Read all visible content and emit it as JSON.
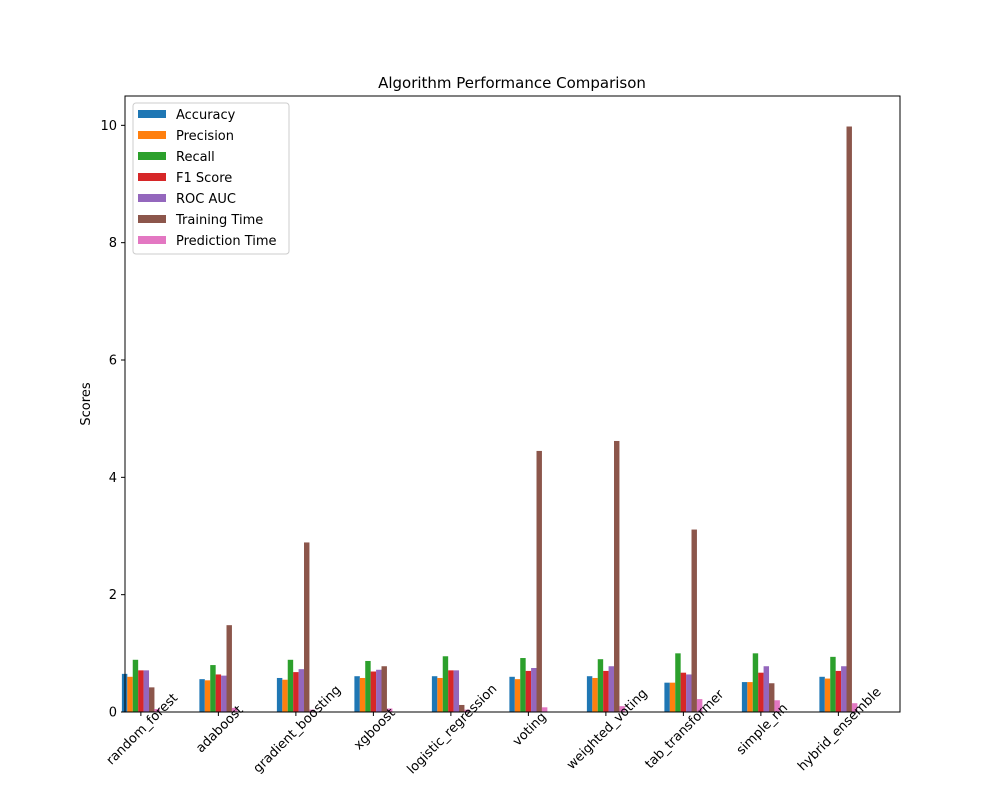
{
  "chart_data": {
    "type": "bar",
    "title": "Algorithm Performance Comparison",
    "xlabel": "",
    "ylabel": "Scores",
    "ylim": [
      0,
      10.5
    ],
    "yticks": [
      0,
      2,
      4,
      6,
      8,
      10
    ],
    "grid": false,
    "legend_position": "top-left",
    "categories": [
      "random_forest",
      "adaboost",
      "gradient_boosting",
      "xgboost",
      "logistic_regression",
      "voting",
      "weighted_voting",
      "tab_transformer",
      "simple_nn",
      "hybrid_ensemble"
    ],
    "series": [
      {
        "name": "Accuracy",
        "color": "#1f77b4",
        "values": [
          0.65,
          0.56,
          0.58,
          0.61,
          0.61,
          0.6,
          0.61,
          0.5,
          0.51,
          0.6
        ]
      },
      {
        "name": "Precision",
        "color": "#ff7f0e",
        "values": [
          0.6,
          0.54,
          0.55,
          0.58,
          0.58,
          0.56,
          0.58,
          0.5,
          0.51,
          0.57
        ]
      },
      {
        "name": "Recall",
        "color": "#2ca02c",
        "values": [
          0.89,
          0.8,
          0.89,
          0.87,
          0.95,
          0.92,
          0.9,
          1.0,
          1.0,
          0.94
        ]
      },
      {
        "name": "F1 Score",
        "color": "#d62728",
        "values": [
          0.71,
          0.64,
          0.68,
          0.69,
          0.71,
          0.7,
          0.7,
          0.67,
          0.67,
          0.7
        ]
      },
      {
        "name": "ROC AUC",
        "color": "#9467bd",
        "values": [
          0.71,
          0.62,
          0.73,
          0.72,
          0.71,
          0.75,
          0.78,
          0.64,
          0.78,
          0.78
        ]
      },
      {
        "name": "Training Time",
        "color": "#8c564b",
        "values": [
          0.42,
          1.48,
          2.89,
          0.78,
          0.12,
          4.45,
          4.62,
          3.11,
          0.49,
          9.98
        ]
      },
      {
        "name": "Prediction Time",
        "color": "#e377c2",
        "values": [
          0.05,
          0.07,
          0.04,
          0.06,
          0.04,
          0.08,
          0.1,
          0.22,
          0.2,
          0.15
        ]
      }
    ]
  }
}
